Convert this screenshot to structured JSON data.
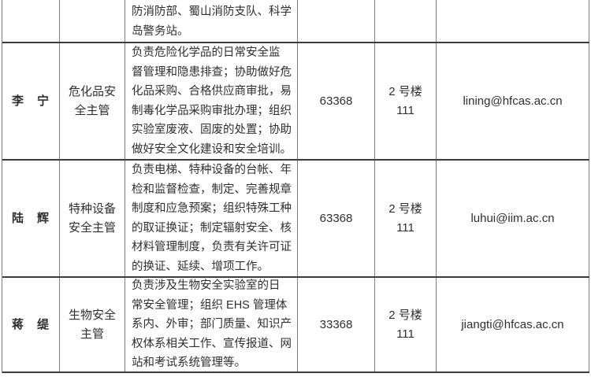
{
  "colors": {
    "background": "#ffffff",
    "text": "#2f2f2f",
    "border_vertical": "#7f7f7f",
    "border_horizontal": "#3d3d3d"
  },
  "table": {
    "partial_row": {
      "name": "",
      "position": "",
      "duties": [
        "防消防部、蜀山消防支队、科学",
        "岛警务站。"
      ],
      "phone": "",
      "location": "",
      "email": ""
    },
    "rows": [
      {
        "name": "李　宁",
        "position": [
          "危化品安",
          "全主管"
        ],
        "duties": [
          "负责危险化学品的日常安全监",
          "督管理和隐患排查；协助做好危",
          "化品采购、合格供应商审批，易",
          "制毒化学品采购审批办理；组织",
          "实验室废液、固废的处置；协助",
          "做好安全文化建设和安全培训。"
        ],
        "phone": "63368",
        "location": [
          "2 号楼",
          "111"
        ],
        "email": "lining@hfcas.ac.cn"
      },
      {
        "name": "陆　辉",
        "position": [
          "特种设备",
          "安全主管"
        ],
        "duties": [
          "负责电梯、特种设备的台帐、年",
          "检和监督检查，制定、完善规章",
          "制度和应急预案；组织特殊工种",
          "的取证换证；制定辐射安全、核",
          "材料管理制度，负责有关许可证",
          "的换证、延续、增项工作。"
        ],
        "phone": "63368",
        "location": [
          "2 号楼",
          "111"
        ],
        "email": "luhui@iim.ac.cn"
      },
      {
        "name": "蒋　缇",
        "position": [
          "生物安全",
          "主管"
        ],
        "duties": [
          "负责涉及生物安全实验室的日",
          "常安全管理；组织 EHS 管理体",
          "系内、外审；部门质量、知识产",
          "权体系相关工作、宣传报道、网",
          "站和考试系统管理等。"
        ],
        "phone": "33368",
        "location": [
          "2 号楼",
          "111"
        ],
        "email": "jiangti@hfcas.ac.cn"
      }
    ]
  }
}
